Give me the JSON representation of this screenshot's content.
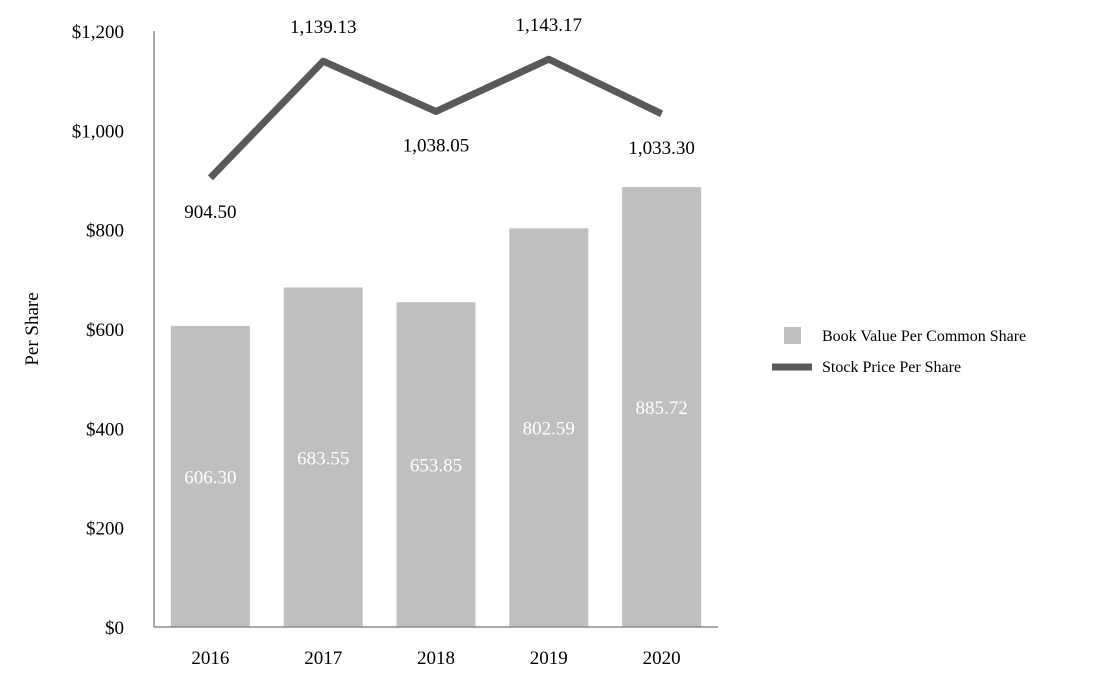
{
  "chart_data": {
    "type": "bar",
    "title": "",
    "xlabel": "",
    "ylabel": "Per Share",
    "ylim": [
      0,
      1200
    ],
    "yticks": [
      {
        "value": 0,
        "label": "$0"
      },
      {
        "value": 200,
        "label": "$200"
      },
      {
        "value": 400,
        "label": "$400"
      },
      {
        "value": 600,
        "label": "$600"
      },
      {
        "value": 800,
        "label": "$800"
      },
      {
        "value": 1000,
        "label": "$1,000"
      },
      {
        "value": 1200,
        "label": "$1,200"
      }
    ],
    "categories": [
      "2016",
      "2017",
      "2018",
      "2019",
      "2020"
    ],
    "grid": false,
    "legend_position": "right",
    "series": [
      {
        "name": "Book Value Per Common Share",
        "type": "bar",
        "color": "#bfbfbf",
        "values": [
          606.3,
          683.55,
          653.85,
          802.59,
          885.72
        ],
        "labels": [
          "606.30",
          "683.55",
          "653.85",
          "802.59",
          "885.72"
        ]
      },
      {
        "name": "Stock Price Per Share",
        "type": "line",
        "color": "#595959",
        "values": [
          904.5,
          1139.13,
          1038.05,
          1143.17,
          1033.3
        ],
        "labels": [
          "904.50",
          "1,139.13",
          "1,038.05",
          "1,143.17",
          "1,033.30"
        ],
        "label_side": [
          "below",
          "above",
          "below",
          "above",
          "below"
        ]
      }
    ]
  }
}
